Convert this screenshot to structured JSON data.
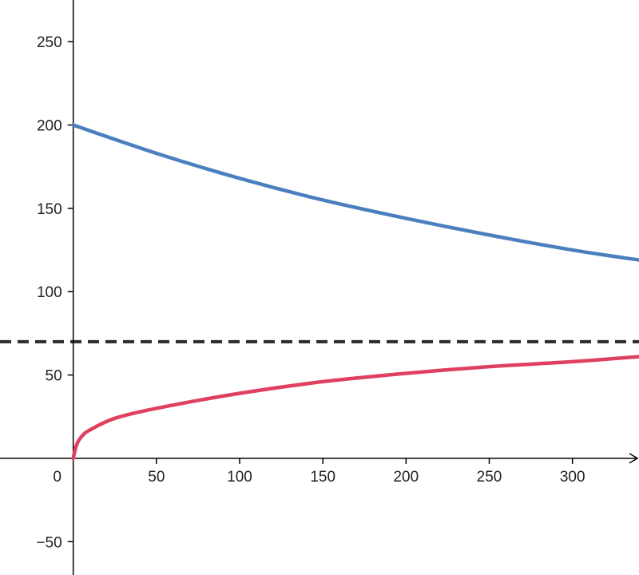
{
  "chart_data": {
    "type": "line",
    "title": "",
    "xlabel": "",
    "ylabel": "",
    "xlim": [
      -44,
      340
    ],
    "ylim": [
      -70,
      275
    ],
    "grid": false,
    "x_ticks": [
      0,
      50,
      100,
      150,
      200,
      250,
      300
    ],
    "y_ticks": [
      -50,
      50,
      100,
      150,
      200,
      250
    ],
    "x_tick_labels": [
      "0",
      "50",
      "100",
      "150",
      "200",
      "250",
      "300"
    ],
    "y_tick_labels": [
      "−50",
      "50",
      "100",
      "150",
      "200",
      "250"
    ],
    "series": [
      {
        "color": "#4a7fbf",
        "x": [
          0,
          50,
          100,
          150,
          200,
          250,
          300,
          340
        ],
        "y": [
          200,
          183,
          168,
          155,
          144,
          134,
          125,
          119
        ]
      },
      {
        "color": "#e0405f",
        "x": [
          0,
          2,
          5,
          10,
          25,
          50,
          100,
          150,
          200,
          250,
          300,
          340
        ],
        "y": [
          0,
          8,
          13,
          17,
          24,
          30,
          39,
          46,
          51,
          55,
          58,
          61
        ]
      }
    ],
    "reference_lines": [
      {
        "orientation": "horizontal",
        "y": 70,
        "style": "dashed",
        "color": "#2b2b2b"
      }
    ]
  }
}
